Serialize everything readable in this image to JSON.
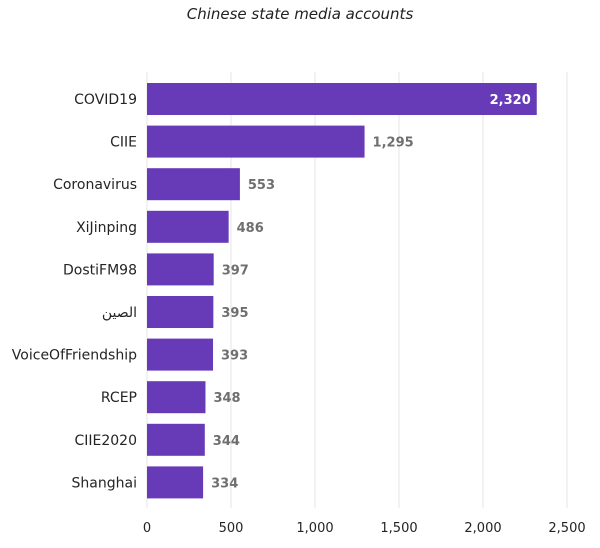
{
  "chart_data": {
    "type": "bar",
    "orientation": "horizontal",
    "title": "Chinese state media accounts",
    "categories": [
      "COVID19",
      "CIIE",
      "Coronavirus",
      "XiJinping",
      "DostiFM98",
      "الصين",
      "VoiceOfFriendship",
      "RCEP",
      "CIIE2020",
      "Shanghai"
    ],
    "values": [
      2320,
      1295,
      553,
      486,
      397,
      395,
      393,
      348,
      344,
      334
    ],
    "value_labels": [
      "2,320",
      "1,295",
      "553",
      "486",
      "397",
      "395",
      "393",
      "348",
      "344",
      "334"
    ],
    "xlim": [
      0,
      2500
    ],
    "xticks": [
      0,
      500,
      1000,
      1500,
      2000,
      2500
    ],
    "xtick_labels": [
      "0",
      "500",
      "1,000",
      "1,500",
      "2,000",
      "2,500"
    ],
    "xlabel": "",
    "ylabel": "",
    "grid": true,
    "bar_color": "#673AB7"
  }
}
